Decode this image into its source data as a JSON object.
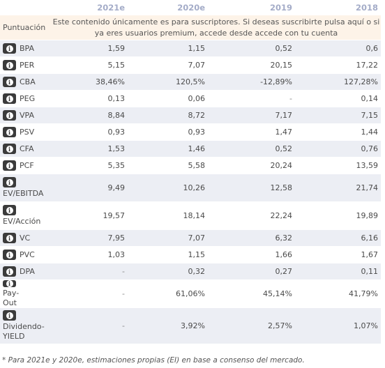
{
  "header": {
    "years": [
      "2021e",
      "2020e",
      "2019",
      "2018"
    ]
  },
  "score": {
    "label": "Puntuación",
    "notice": "Este contenido únicamente es para suscriptores. Si deseas suscribirte pulsa aquí o si ya eres usuarios premium, accede desde accede con tu cuenta"
  },
  "rows": [
    {
      "label": "BPA",
      "values": [
        "1,59",
        "1,15",
        "0,52",
        "0,6"
      ]
    },
    {
      "label": "PER",
      "values": [
        "5,15",
        "7,07",
        "20,15",
        "17,22"
      ]
    },
    {
      "label": "CBA",
      "values": [
        "38,46%",
        "120,5%",
        "-12,89%",
        "127,28%"
      ]
    },
    {
      "label": "PEG",
      "values": [
        "0,13",
        "0,06",
        "-",
        "0,14"
      ]
    },
    {
      "label": "VPA",
      "values": [
        "8,84",
        "8,72",
        "7,17",
        "7,15"
      ]
    },
    {
      "label": "PSV",
      "values": [
        "0,93",
        "0,93",
        "1,47",
        "1,44"
      ]
    },
    {
      "label": "CFA",
      "values": [
        "1,53",
        "1,46",
        "0,52",
        "0,76"
      ]
    },
    {
      "label": "PCF",
      "values": [
        "5,35",
        "5,58",
        "20,24",
        "13,59"
      ]
    },
    {
      "label": "EV/EBITDA",
      "values": [
        "9,49",
        "10,26",
        "12,58",
        "21,74"
      ]
    },
    {
      "label": "EV/Acción",
      "values": [
        "19,57",
        "18,14",
        "22,24",
        "19,89"
      ]
    },
    {
      "label": "VC",
      "values": [
        "7,95",
        "7,07",
        "6,32",
        "6,16"
      ]
    },
    {
      "label": "PVC",
      "values": [
        "1,03",
        "1,15",
        "1,66",
        "1,67"
      ]
    },
    {
      "label": "DPA",
      "values": [
        "-",
        "0,32",
        "0,27",
        "0,11"
      ]
    },
    {
      "label": "Pay-Out",
      "values": [
        "-",
        "61,06%",
        "45,14%",
        "41,79%"
      ]
    },
    {
      "label": "Dividendo-YIELD",
      "values": [
        "-",
        "3,92%",
        "2,57%",
        "1,07%"
      ]
    }
  ],
  "labels_wrapped": {
    "EV/EBITDA": "EV/EBITDA",
    "EV/Acción": "EV/Acción",
    "Pay-Out": [
      "Pay-",
      "Out"
    ],
    "Dividendo-YIELD": [
      "Dividendo-",
      "YIELD"
    ]
  },
  "footnote": "* Para 2021e y 2020e, estimaciones propias (EI) en base a consenso del mercado.",
  "colors": {
    "year_header": "#a4acc8",
    "row_stripe": "#eceef4",
    "score_bg": "#fdf3e8",
    "info_icon_bg": "#3b3b3b"
  }
}
